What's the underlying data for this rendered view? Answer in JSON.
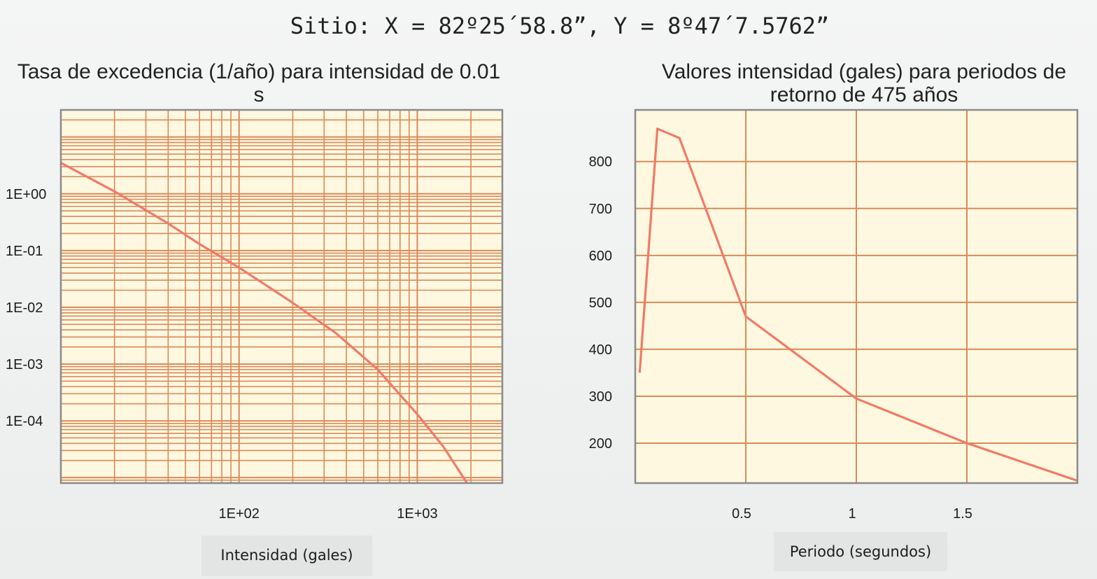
{
  "page": {
    "site_title": "Sitio: X = 82º25´58.8”, Y = 8º47´7.5762”"
  },
  "colors": {
    "plot_bg": "#fdf8df",
    "grid": "#d98a5b",
    "line": "#f17a68",
    "frame": "#8a8a8a"
  },
  "chart_data": [
    {
      "type": "line",
      "title": "Tasa de excedencia (1/año) para intensidad de 0.01 s",
      "xlabel": "Intensidad (gales)",
      "ylabel": "",
      "xscale": "log",
      "yscale": "log",
      "xlim": [
        10,
        3000
      ],
      "ylim": [
        8e-06,
        30
      ],
      "grid": true,
      "x_ticks": [
        {
          "value": 100,
          "label": "1E+02"
        },
        {
          "value": 1000,
          "label": "1E+03"
        }
      ],
      "y_ticks": [
        {
          "value": 1,
          "label": "1E+00"
        },
        {
          "value": 0.1,
          "label": "1E-01"
        },
        {
          "value": 0.01,
          "label": "1E-02"
        },
        {
          "value": 0.001,
          "label": "1E-03"
        },
        {
          "value": 0.0001,
          "label": "1E-04"
        }
      ],
      "series": [
        {
          "x": [
            10,
            20,
            40,
            60,
            100,
            200,
            350,
            600,
            1000,
            1400,
            1900
          ],
          "y": [
            3.5,
            1.1,
            0.3,
            0.13,
            0.05,
            0.012,
            0.0035,
            0.0008,
            0.00013,
            3.5e-05,
            8e-06
          ]
        }
      ]
    },
    {
      "type": "line",
      "title": "Valores intensidad (gales) para periodos de retorno de 475 años",
      "xlabel": "Periodo (segundos)",
      "ylabel": "",
      "xlim": [
        0,
        2
      ],
      "ylim": [
        115,
        910
      ],
      "grid": true,
      "x_ticks": [
        {
          "value": 0.5,
          "label": "0.5"
        },
        {
          "value": 1,
          "label": "1"
        },
        {
          "value": 1.5,
          "label": "1.5"
        }
      ],
      "y_ticks": [
        {
          "value": 200,
          "label": "200"
        },
        {
          "value": 300,
          "label": "300"
        },
        {
          "value": 400,
          "label": "400"
        },
        {
          "value": 500,
          "label": "500"
        },
        {
          "value": 600,
          "label": "600"
        },
        {
          "value": 700,
          "label": "700"
        },
        {
          "value": 800,
          "label": "800"
        }
      ],
      "series": [
        {
          "x": [
            0.02,
            0.1,
            0.2,
            0.5,
            1.0,
            1.5,
            2.0
          ],
          "y": [
            350,
            870,
            850,
            470,
            295,
            200,
            120
          ]
        }
      ]
    }
  ]
}
